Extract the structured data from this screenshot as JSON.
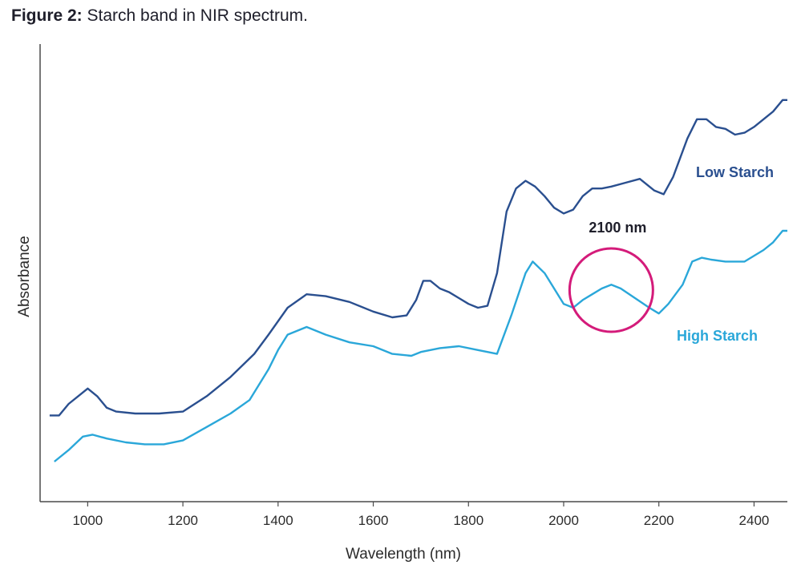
{
  "figure": {
    "title_lead": "Figure 2:",
    "title_rest": "Starch band in NIR spectrum."
  },
  "chart_data": {
    "type": "line",
    "xlabel": "Wavelength (nm)",
    "ylabel": "Absorbance",
    "xlim": [
      900,
      2470
    ],
    "ylim": [
      0,
      100
    ],
    "xticks": [
      1000,
      1200,
      1400,
      1600,
      1800,
      2000,
      2200,
      2400
    ],
    "yticks_shown": false,
    "grid": false,
    "series": [
      {
        "name": "Low Starch",
        "color": "#2a4f8f",
        "points": [
          [
            920,
            17
          ],
          [
            940,
            17
          ],
          [
            960,
            20
          ],
          [
            980,
            22
          ],
          [
            1000,
            24
          ],
          [
            1020,
            22
          ],
          [
            1040,
            19
          ],
          [
            1060,
            18
          ],
          [
            1100,
            17.5
          ],
          [
            1150,
            17.5
          ],
          [
            1200,
            18
          ],
          [
            1250,
            22
          ],
          [
            1300,
            27
          ],
          [
            1350,
            33
          ],
          [
            1380,
            38
          ],
          [
            1420,
            45
          ],
          [
            1460,
            48.5
          ],
          [
            1500,
            48
          ],
          [
            1550,
            46.5
          ],
          [
            1600,
            44
          ],
          [
            1640,
            42.5
          ],
          [
            1670,
            43
          ],
          [
            1690,
            47
          ],
          [
            1705,
            52
          ],
          [
            1720,
            52
          ],
          [
            1740,
            50
          ],
          [
            1760,
            49
          ],
          [
            1780,
            47.5
          ],
          [
            1800,
            46
          ],
          [
            1820,
            45
          ],
          [
            1840,
            45.5
          ],
          [
            1860,
            54
          ],
          [
            1880,
            70
          ],
          [
            1900,
            76
          ],
          [
            1920,
            78
          ],
          [
            1940,
            76.5
          ],
          [
            1960,
            74
          ],
          [
            1980,
            71
          ],
          [
            2000,
            69.5
          ],
          [
            2020,
            70.5
          ],
          [
            2040,
            74
          ],
          [
            2060,
            76
          ],
          [
            2080,
            76
          ],
          [
            2100,
            76.5
          ],
          [
            2130,
            77.5
          ],
          [
            2160,
            78.5
          ],
          [
            2190,
            75.5
          ],
          [
            2210,
            74.5
          ],
          [
            2230,
            79
          ],
          [
            2260,
            89
          ],
          [
            2280,
            94
          ],
          [
            2300,
            94
          ],
          [
            2320,
            92
          ],
          [
            2340,
            91.5
          ],
          [
            2360,
            90
          ],
          [
            2380,
            90.5
          ],
          [
            2400,
            92
          ],
          [
            2420,
            94
          ],
          [
            2440,
            96
          ],
          [
            2460,
            99
          ],
          [
            2470,
            99
          ]
        ]
      },
      {
        "name": "High Starch",
        "color": "#2aa7d9",
        "points": [
          [
            930,
            5
          ],
          [
            960,
            8
          ],
          [
            990,
            11.5
          ],
          [
            1010,
            12
          ],
          [
            1040,
            11
          ],
          [
            1080,
            10
          ],
          [
            1120,
            9.5
          ],
          [
            1160,
            9.5
          ],
          [
            1200,
            10.5
          ],
          [
            1250,
            14
          ],
          [
            1300,
            17.5
          ],
          [
            1340,
            21
          ],
          [
            1380,
            29
          ],
          [
            1400,
            34
          ],
          [
            1420,
            38
          ],
          [
            1460,
            40
          ],
          [
            1500,
            38
          ],
          [
            1550,
            36
          ],
          [
            1600,
            35
          ],
          [
            1640,
            33
          ],
          [
            1680,
            32.5
          ],
          [
            1700,
            33.5
          ],
          [
            1740,
            34.5
          ],
          [
            1780,
            35
          ],
          [
            1820,
            34
          ],
          [
            1860,
            33
          ],
          [
            1890,
            43
          ],
          [
            1920,
            54
          ],
          [
            1935,
            57
          ],
          [
            1960,
            54
          ],
          [
            1980,
            50
          ],
          [
            2000,
            46
          ],
          [
            2020,
            45
          ],
          [
            2040,
            47
          ],
          [
            2060,
            48.5
          ],
          [
            2080,
            50
          ],
          [
            2100,
            51
          ],
          [
            2120,
            50
          ],
          [
            2150,
            47.5
          ],
          [
            2180,
            45
          ],
          [
            2200,
            43.5
          ],
          [
            2220,
            46
          ],
          [
            2250,
            51
          ],
          [
            2270,
            57
          ],
          [
            2290,
            58
          ],
          [
            2310,
            57.5
          ],
          [
            2340,
            57
          ],
          [
            2380,
            57
          ],
          [
            2420,
            60
          ],
          [
            2440,
            62
          ],
          [
            2460,
            65
          ],
          [
            2470,
            65
          ]
        ]
      }
    ],
    "annotation": {
      "label": "2100 nm",
      "color": "#d41b7a",
      "center": [
        2100,
        50
      ]
    }
  }
}
